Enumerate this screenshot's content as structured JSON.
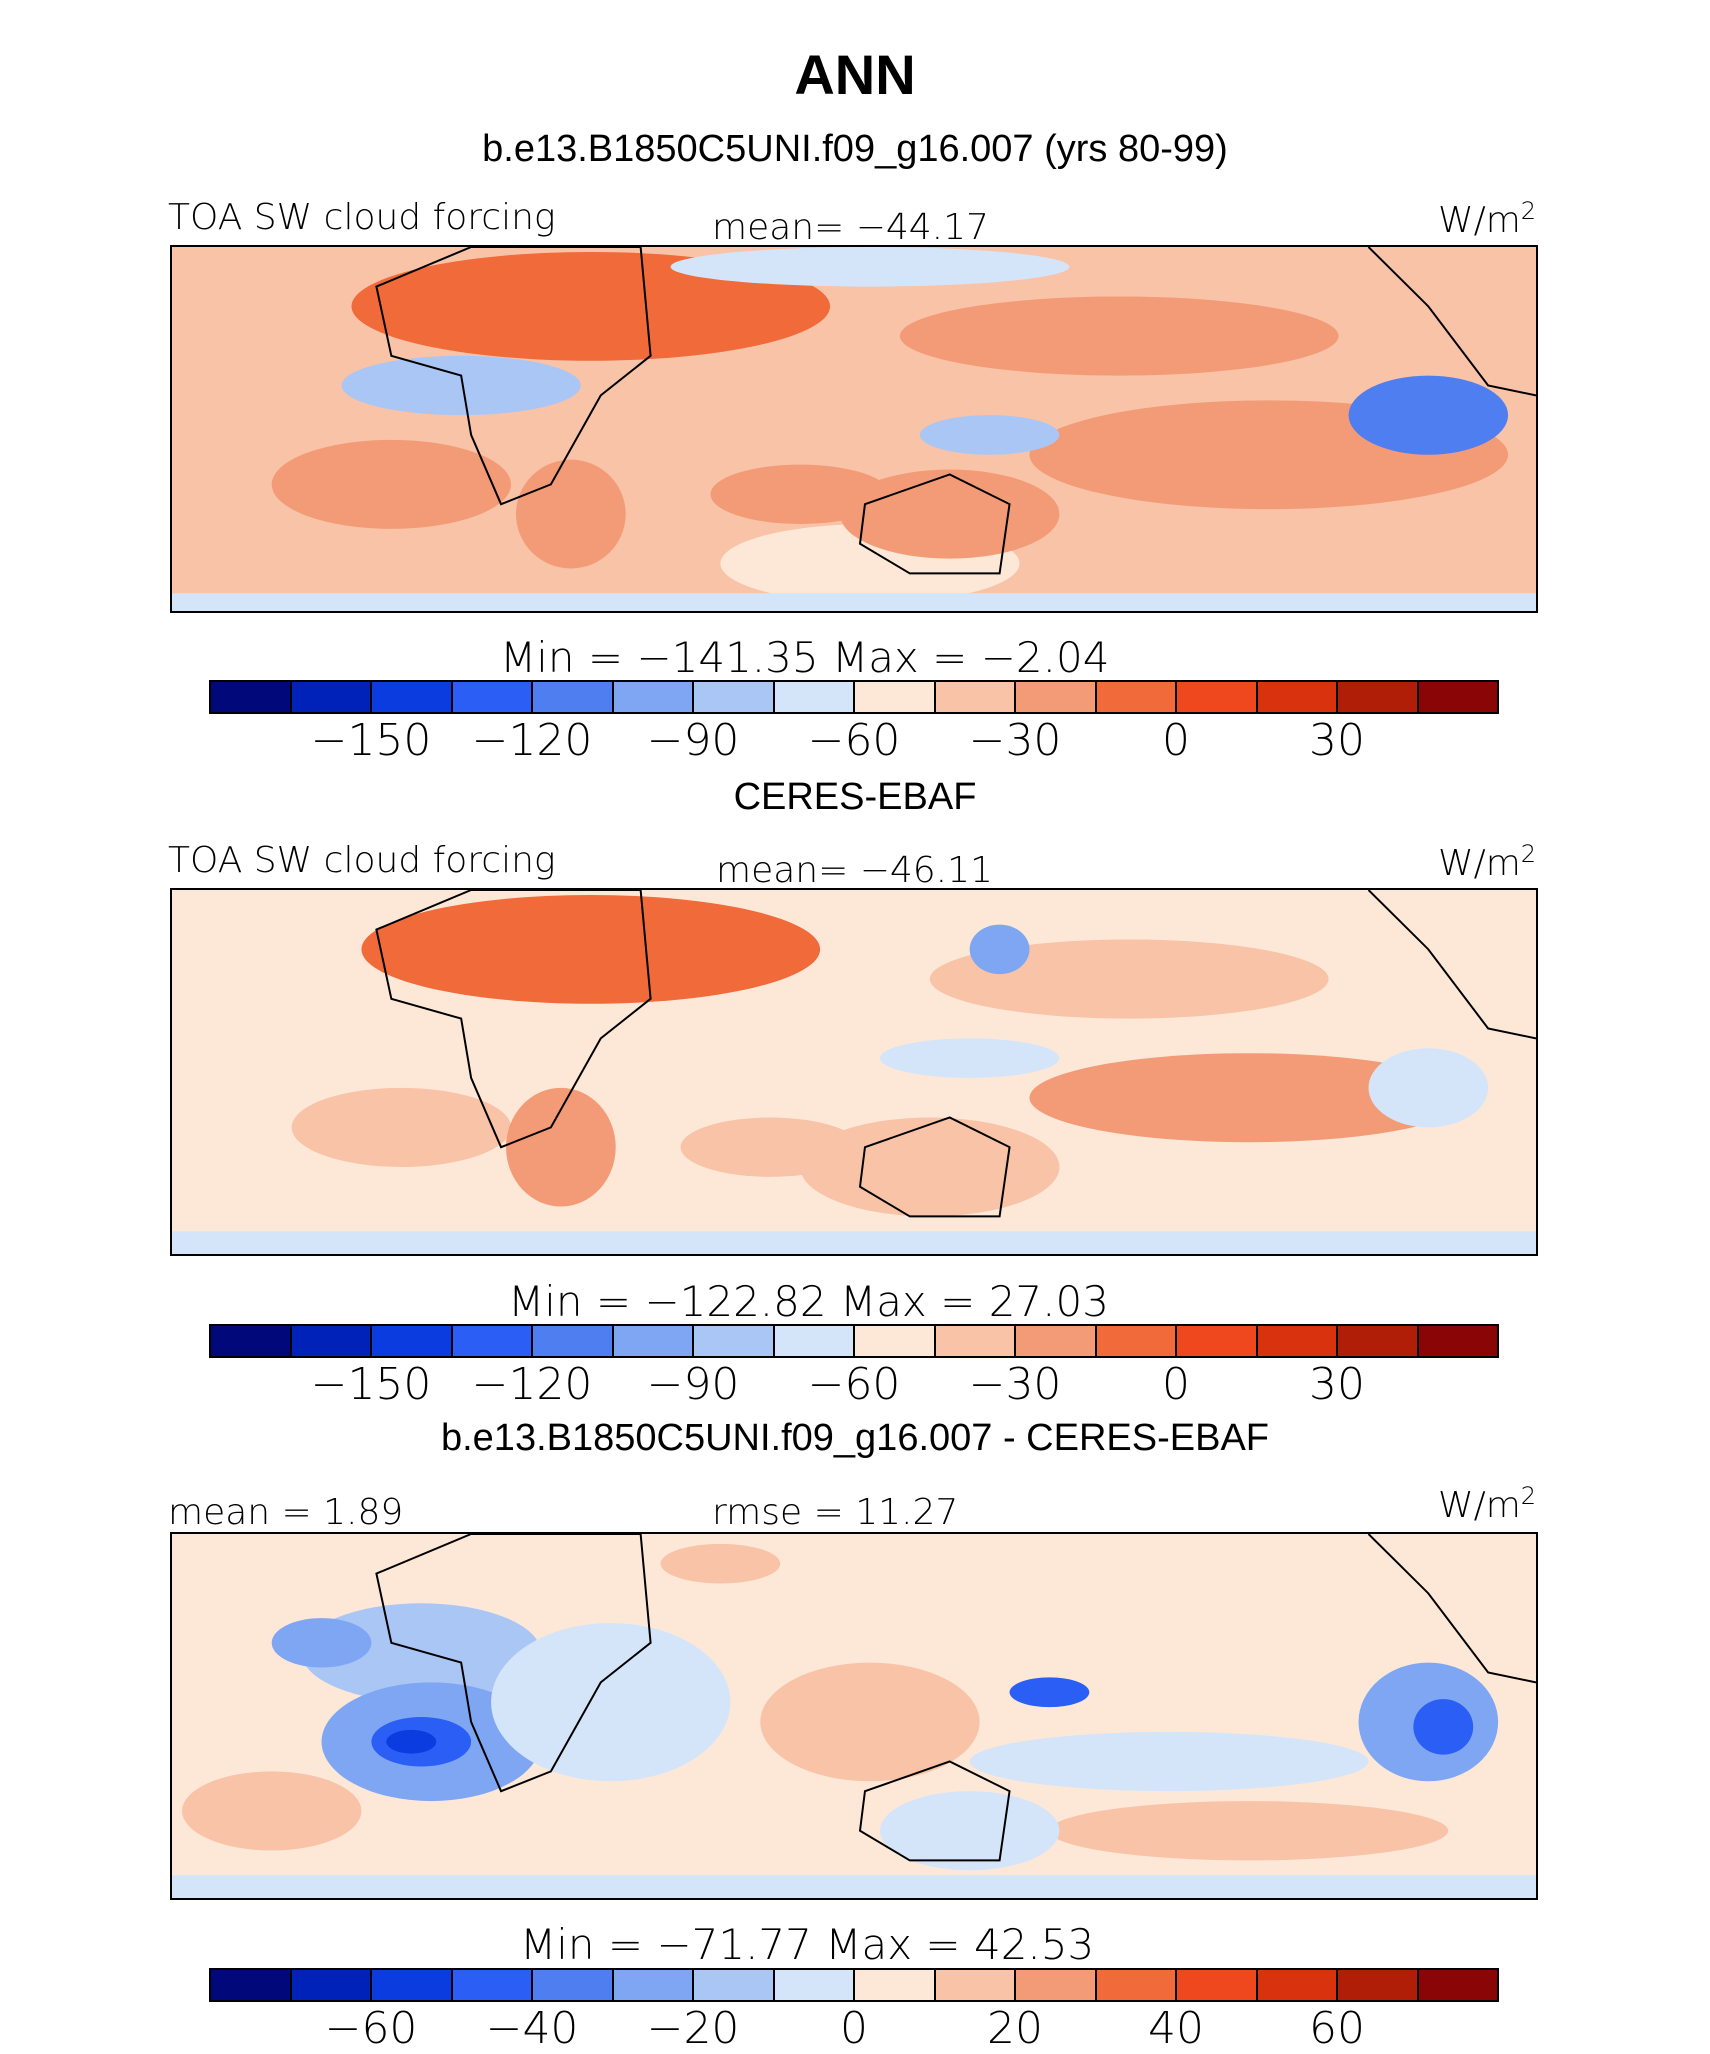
{
  "title": "ANN",
  "panels": [
    {
      "header": "b.e13.B1850C5UNI.f09_g16.007 (yrs 80-99)",
      "left_label": "TOA SW cloud forcing",
      "center_label": "mean= −44.17",
      "unit_base": "W/m",
      "unit_exp": "2",
      "min_label": "Min",
      "min_value": "−141.35",
      "max_label": "Max",
      "max_value": "−2.04",
      "ticks": [
        "−150",
        "−120",
        "−90",
        "−60",
        "−30",
        "0",
        "30"
      ]
    },
    {
      "header": "CERES-EBAF",
      "left_label": "TOA SW cloud forcing",
      "center_label": "mean= −46.11",
      "unit_base": "W/m",
      "unit_exp": "2",
      "min_label": "Min",
      "min_value": "−122.82",
      "max_label": "Max",
      "max_value": "27.03",
      "ticks": [
        "−150",
        "−120",
        "−90",
        "−60",
        "−30",
        "0",
        "30"
      ]
    },
    {
      "header": "b.e13.B1850C5UNI.f09_g16.007 - CERES-EBAF",
      "left_label": "mean =   1.89",
      "center_label": "rmse =  11.27",
      "unit_base": "W/m",
      "unit_exp": "2",
      "min_label": "Min",
      "min_value": "−71.77",
      "max_label": "Max",
      "max_value": "42.53",
      "ticks": [
        "−60",
        "−40",
        "−20",
        "0",
        "20",
        "40",
        "60"
      ]
    }
  ],
  "colors": {
    "palette": [
      "#00087a",
      "#0022b8",
      "#0a3ce0",
      "#2a5ef5",
      "#4f7ef0",
      "#7fa6f2",
      "#aac6f5",
      "#d4e5f9",
      "#fde8d8",
      "#f8c3a7",
      "#f39b77",
      "#f06a3a",
      "#f0481e",
      "#d9320e",
      "#b11e08",
      "#8a0505"
    ],
    "outline": "#000000"
  }
}
